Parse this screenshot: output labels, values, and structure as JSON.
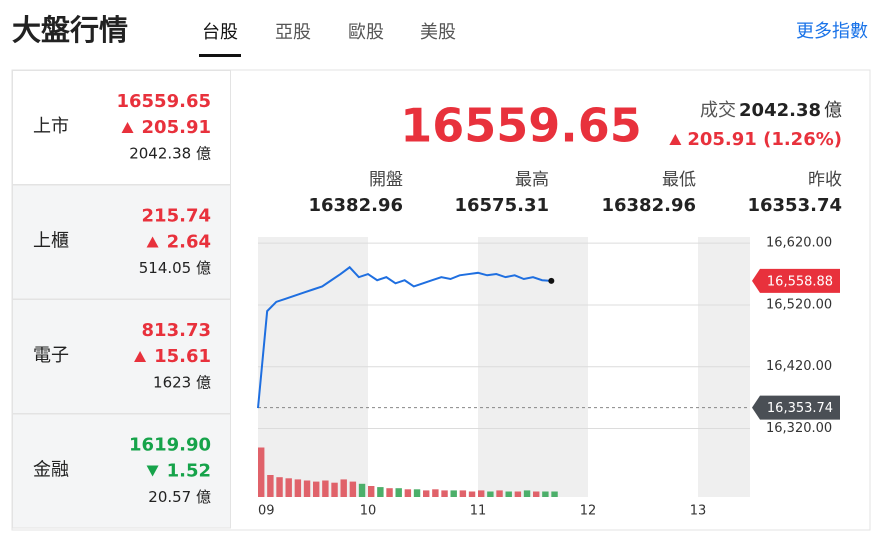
{
  "header": {
    "title": "大盤行情",
    "tabs": [
      "台股",
      "亞股",
      "歐股",
      "美股"
    ],
    "active_tab": 0,
    "more": "更多指數"
  },
  "sidebar": [
    {
      "name": "上市",
      "price": "16559.65",
      "change": "205.91",
      "volume": "2042.38 億",
      "direction": "up"
    },
    {
      "name": "上櫃",
      "price": "215.74",
      "change": "2.64",
      "volume": "514.05 億",
      "direction": "up"
    },
    {
      "name": "電子",
      "price": "813.73",
      "change": "15.61",
      "volume": "1623 億",
      "direction": "up"
    },
    {
      "name": "金融",
      "price": "1619.90",
      "change": "1.52",
      "volume": "20.57 億",
      "direction": "down"
    }
  ],
  "active_row": 0,
  "main": {
    "price": "16559.65",
    "volume_label": "成交",
    "volume": "2042.38",
    "volume_unit": "億",
    "change": "205.91 (1.26%)",
    "direction": "up",
    "stats": [
      {
        "label": "開盤",
        "value": "16382.96"
      },
      {
        "label": "最高",
        "value": "16575.31"
      },
      {
        "label": "最低",
        "value": "16382.96"
      },
      {
        "label": "昨收",
        "value": "16353.74"
      }
    ]
  },
  "chart": {
    "type": "line",
    "color": "#1f6fe0",
    "x_labels": [
      "09",
      "10",
      "11",
      "12",
      "13"
    ],
    "ylim": [
      16290,
      16630
    ],
    "yticks": [
      {
        "value": 16620,
        "label": "16,620.00"
      },
      {
        "value": 16520,
        "label": "16,520.00"
      },
      {
        "value": 16420,
        "label": "16,420.00"
      },
      {
        "value": 16320,
        "label": "16,320.00"
      }
    ],
    "current": {
      "value": 16558.88,
      "label": "16,558.88"
    },
    "prev_close": {
      "value": 16353.74,
      "label": "16,353.74"
    },
    "values": [
      16353,
      16510,
      16525,
      16530,
      16535,
      16540,
      16545,
      16550,
      16560,
      16570,
      16581,
      16565,
      16570,
      16560,
      16565,
      16555,
      16560,
      16550,
      16555,
      16560,
      16565,
      16562,
      16568,
      16570,
      16572,
      16568,
      16570,
      16565,
      16568,
      16562,
      16565,
      16560,
      16558.88
    ],
    "volume_lim": [
      0,
      50
    ],
    "volume": [
      45,
      20,
      18,
      17,
      16,
      15,
      14,
      15,
      13,
      16,
      14,
      12,
      10,
      9,
      8,
      8,
      7,
      7,
      6,
      7,
      6,
      6,
      6,
      5,
      6,
      5,
      6,
      5,
      5,
      6,
      5,
      5,
      5
    ]
  }
}
